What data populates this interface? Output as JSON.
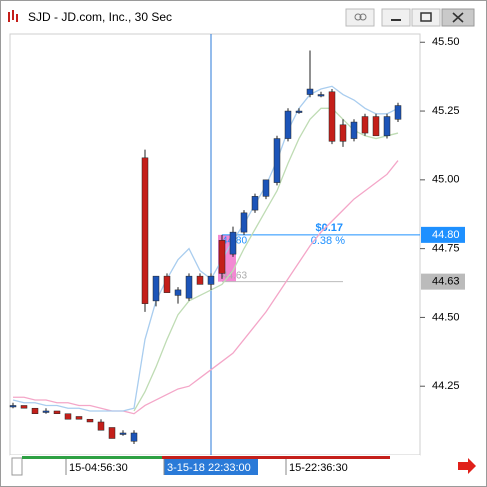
{
  "chart_data": {
    "type": "candlestick",
    "title": "SJD - JD.com, Inc., 30 Sec",
    "categories": [
      null,
      null,
      null,
      null,
      null,
      null,
      null,
      null,
      "15-04:56:30",
      null,
      null,
      null,
      null,
      null,
      null,
      null,
      null,
      null,
      "3-15-18 22:33:00",
      null,
      null,
      null,
      null,
      null,
      null,
      null,
      null,
      null,
      "15-22:36:30",
      null,
      null,
      null,
      null,
      null,
      null,
      null
    ],
    "open": [
      44.18,
      44.18,
      44.17,
      44.16,
      44.16,
      44.15,
      44.14,
      44.13,
      44.12,
      44.1,
      44.08,
      44.05,
      45.08,
      44.56,
      44.65,
      44.58,
      44.57,
      44.65,
      44.62,
      44.78,
      44.73,
      44.81,
      44.89,
      44.94,
      44.99,
      45.15,
      45.25,
      45.31,
      45.31,
      45.32,
      45.2,
      45.15,
      45.23,
      45.23,
      45.16,
      45.22
    ],
    "high": [
      44.19,
      44.18,
      44.17,
      44.17,
      44.16,
      44.15,
      44.14,
      44.13,
      44.13,
      44.1,
      44.09,
      44.09,
      45.11,
      44.65,
      44.66,
      44.61,
      44.66,
      44.66,
      44.66,
      44.8,
      44.83,
      44.89,
      44.95,
      45.0,
      45.16,
      45.26,
      45.26,
      45.47,
      45.32,
      45.33,
      45.22,
      45.22,
      45.24,
      45.24,
      45.24,
      45.28
    ],
    "low": [
      44.17,
      44.17,
      44.15,
      44.15,
      44.15,
      44.13,
      44.13,
      44.12,
      44.09,
      44.06,
      44.07,
      44.04,
      44.52,
      44.54,
      44.59,
      44.55,
      44.56,
      44.62,
      44.6,
      44.64,
      44.72,
      44.8,
      44.88,
      44.93,
      44.98,
      45.14,
      45.24,
      45.3,
      45.3,
      45.13,
      45.12,
      45.14,
      45.16,
      45.16,
      45.15,
      45.21
    ],
    "close": [
      44.18,
      44.17,
      44.15,
      44.16,
      44.15,
      44.13,
      44.13,
      44.12,
      44.09,
      44.06,
      44.08,
      44.08,
      44.55,
      44.65,
      44.59,
      44.6,
      44.65,
      44.62,
      44.65,
      44.66,
      44.81,
      44.88,
      44.94,
      45.0,
      45.15,
      45.25,
      45.25,
      45.33,
      45.31,
      45.14,
      45.14,
      45.21,
      45.17,
      45.16,
      45.23,
      45.27
    ],
    "up_color": "#1c54b8",
    "down_color": "#c41f1a",
    "series": [
      {
        "color": "#f4a6c8",
        "values": [
          44.21,
          44.21,
          44.2,
          44.2,
          44.19,
          44.19,
          44.18,
          44.18,
          44.17,
          44.16,
          44.16,
          44.15,
          44.18,
          44.2,
          44.22,
          44.24,
          44.25,
          44.28,
          44.31,
          44.34,
          44.37,
          44.42,
          44.47,
          44.52,
          44.58,
          44.64,
          44.7,
          44.76,
          44.81,
          44.85,
          44.89,
          44.93,
          44.96,
          44.99,
          45.02,
          45.07
        ]
      },
      {
        "color": "#a9cdef",
        "values": [
          44.2,
          44.19,
          44.19,
          44.18,
          44.18,
          44.17,
          44.17,
          44.16,
          44.16,
          44.16,
          44.16,
          44.17,
          44.42,
          44.56,
          44.64,
          44.71,
          44.75,
          44.67,
          44.64,
          44.71,
          44.78,
          44.84,
          44.91,
          44.98,
          45.07,
          45.18,
          45.26,
          45.31,
          45.33,
          45.34,
          45.31,
          45.29,
          45.26,
          45.24,
          45.24,
          45.26
        ]
      },
      {
        "color": "#bfdcb4",
        "values": [
          null,
          null,
          null,
          null,
          null,
          null,
          null,
          null,
          null,
          null,
          null,
          44.16,
          44.23,
          44.32,
          44.42,
          44.51,
          44.56,
          44.58,
          44.6,
          44.62,
          44.67,
          44.75,
          44.82,
          44.89,
          44.96,
          45.06,
          45.15,
          45.22,
          45.26,
          45.26,
          45.22,
          45.18,
          45.16,
          45.15,
          45.16,
          45.17
        ]
      }
    ],
    "ylim": [
      44.0,
      45.53
    ],
    "yticks": [
      44.25,
      {
        "value": 44.5,
        "label": "44.50"
      },
      44.75,
      {
        "value": 45.0,
        "label": "45.00"
      },
      45.25,
      {
        "value": 45.5,
        "label": "45.50"
      }
    ],
    "price_tags": [
      {
        "value": 44.8,
        "label": "44.80",
        "color": "#1e90ff"
      },
      {
        "value": 44.63,
        "label": "44.63",
        "color": "#bbbbbb"
      }
    ],
    "change": "$0.17",
    "change_pct": "0.38 %",
    "crosshair_index": 18
  }
}
